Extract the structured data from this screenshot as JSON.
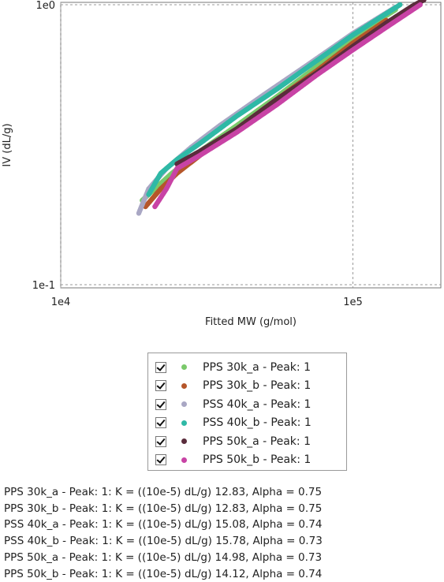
{
  "chart_data": {
    "type": "scatter",
    "xlabel": "Fitted MW (g/mol)",
    "ylabel": "IV (dL/g)",
    "xscale": "log",
    "yscale": "log",
    "xlim": [
      10000,
      200000
    ],
    "ylim": [
      0.1,
      1.0
    ],
    "x_ticks": [
      {
        "value": 10000,
        "label": "1e4"
      },
      {
        "value": 100000,
        "label": "1e5"
      }
    ],
    "y_ticks": [
      {
        "value": 1.0,
        "label": "1e0"
      },
      {
        "value": 0.1,
        "label": "1e-1"
      }
    ],
    "grid": true,
    "legend_placement": "below",
    "series": [
      {
        "name": "PPS 30k_a - Peak: 1",
        "color": "#7ac96b",
        "checked": true,
        "x": [
          19000,
          24000,
          30000,
          40000,
          55000,
          75000,
          100000,
          125000,
          140000
        ],
        "y": [
          0.2,
          0.25,
          0.3,
          0.37,
          0.47,
          0.6,
          0.75,
          0.89,
          0.96
        ]
      },
      {
        "name": "PPS 30k_b - Peak: 1",
        "color": "#b5562a",
        "checked": true,
        "x": [
          19500,
          22000,
          25000,
          30000,
          40000,
          55000,
          75000,
          100000,
          130000
        ],
        "y": [
          0.19,
          0.22,
          0.25,
          0.29,
          0.36,
          0.46,
          0.58,
          0.73,
          0.88
        ]
      },
      {
        "name": "PSS 40k_a - Peak: 1",
        "color": "#a9a7c4",
        "checked": true,
        "x": [
          18500,
          20000,
          23000,
          28000,
          35000,
          50000,
          70000,
          100000,
          140000
        ],
        "y": [
          0.18,
          0.22,
          0.26,
          0.31,
          0.37,
          0.48,
          0.61,
          0.79,
          0.98
        ]
      },
      {
        "name": "PSS 40k_b - Peak: 1",
        "color": "#2fb9a6",
        "checked": true,
        "x": [
          20000,
          22000,
          25000,
          30000,
          40000,
          55000,
          75000,
          100000,
          145000
        ],
        "y": [
          0.21,
          0.25,
          0.28,
          0.32,
          0.4,
          0.5,
          0.63,
          0.78,
          1.0
        ]
      },
      {
        "name": "PPS 50k_a - Peak: 1",
        "color": "#5a2c3c",
        "checked": true,
        "x": [
          25000,
          30000,
          40000,
          55000,
          75000,
          100000,
          130000,
          160000,
          175000
        ],
        "y": [
          0.27,
          0.3,
          0.36,
          0.46,
          0.57,
          0.71,
          0.86,
          0.99,
          1.04
        ]
      },
      {
        "name": "PPS 50k_b - Peak: 1",
        "color": "#c843a5",
        "checked": true,
        "x": [
          21000,
          23000,
          25000,
          30000,
          40000,
          55000,
          75000,
          100000,
          130000,
          170000
        ],
        "y": [
          0.19,
          0.22,
          0.26,
          0.29,
          0.35,
          0.44,
          0.56,
          0.69,
          0.83,
          1.0
        ]
      }
    ]
  },
  "results": [
    "PPS 30k_a - Peak: 1: K = ((10e-5) dL/g) 12.83, Alpha = 0.75",
    "PPS 30k_b - Peak: 1: K = ((10e-5) dL/g) 12.83, Alpha = 0.75",
    "PSS 40k_a - Peak: 1: K = ((10e-5) dL/g) 15.08, Alpha = 0.74",
    "PSS 40k_b - Peak: 1: K = ((10e-5) dL/g) 15.78, Alpha = 0.73",
    "PPS 50k_a - Peak: 1: K = ((10e-5) dL/g) 14.98, Alpha = 0.73",
    "PPS 50k_b - Peak: 1: K = ((10e-5) dL/g) 14.12, Alpha = 0.74"
  ]
}
